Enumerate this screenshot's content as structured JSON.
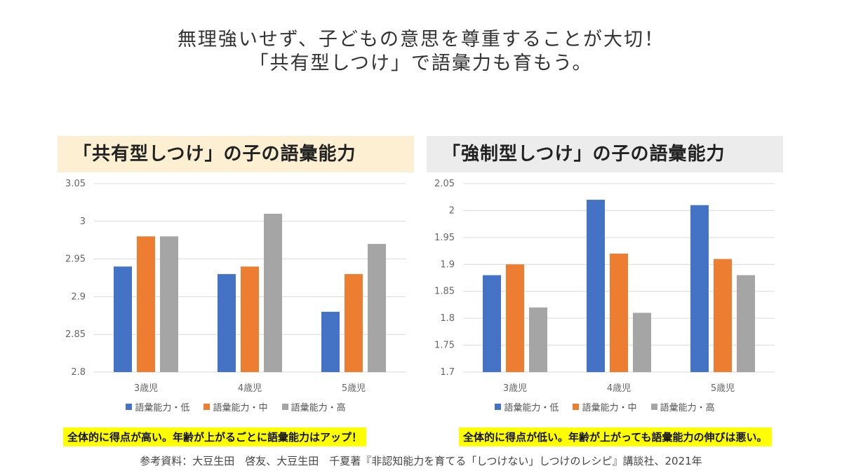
{
  "headline": {
    "line1": "無理強いせず、子どもの意思を尊重することが大切！",
    "line2": "「共有型しつけ」で語彙力も育もう。"
  },
  "colors": {
    "low": "#4472c4",
    "mid": "#ed7d31",
    "high": "#a5a5a5",
    "grid": "#d9d9d9",
    "axis_text": "#666666"
  },
  "chart_data": [
    {
      "type": "bar",
      "title": "「共有型しつけ」の子の語彙能力",
      "categories": [
        "3歳児",
        "4歳児",
        "5歳児"
      ],
      "series": [
        {
          "name": "語彙能力・低",
          "values": [
            2.94,
            2.93,
            2.88
          ]
        },
        {
          "name": "語彙能力・中",
          "values": [
            2.98,
            2.94,
            2.93
          ]
        },
        {
          "name": "語彙能力・高",
          "values": [
            2.98,
            3.01,
            2.97
          ]
        }
      ],
      "ylim": [
        2.8,
        3.05
      ],
      "yticks": [
        "2.8",
        "2.85",
        "2.9",
        "2.95",
        "3",
        "3.05"
      ],
      "grid": true,
      "legend": "bottom"
    },
    {
      "type": "bar",
      "title": "「強制型しつけ」の子の語彙能力",
      "categories": [
        "3歳児",
        "4歳児",
        "5歳児"
      ],
      "series": [
        {
          "name": "語彙能力・低",
          "values": [
            1.88,
            2.02,
            2.01
          ]
        },
        {
          "name": "語彙能力・中",
          "values": [
            1.9,
            1.92,
            1.91
          ]
        },
        {
          "name": "語彙能力・高",
          "values": [
            1.82,
            1.81,
            1.88
          ]
        }
      ],
      "ylim": [
        1.7,
        2.05
      ],
      "yticks": [
        "1.7",
        "1.75",
        "1.8",
        "1.85",
        "1.9",
        "1.95",
        "2",
        "2.05"
      ],
      "grid": true,
      "legend": "bottom"
    }
  ],
  "notes": {
    "left": "全体的に得点が高い。年齢が上がるごとに語彙能力はアップ！",
    "right": "全体的に得点が低い。年齢が上がっても語彙能力の伸びは悪い。"
  },
  "source": "参考資料：大豆生田　啓友、大豆生田　千夏著『非認知能力を育てる「しつけない」しつけのレシピ』講談社、2021年"
}
